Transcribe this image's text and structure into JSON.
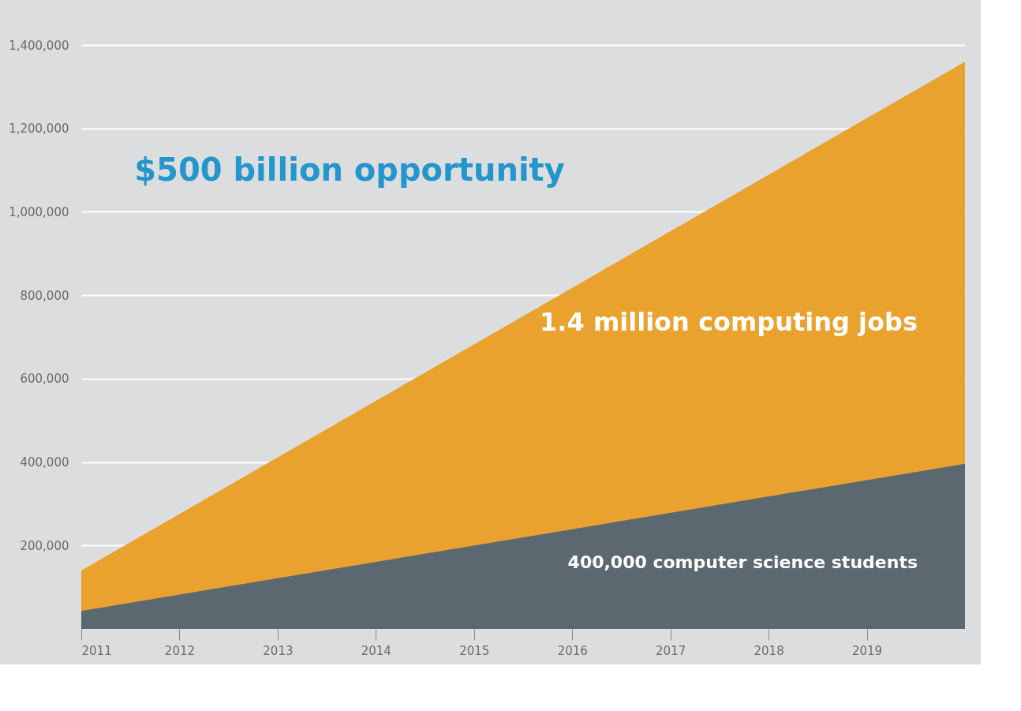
{
  "chart_data": {
    "type": "area",
    "x": [
      2011,
      2020
    ],
    "series": [
      {
        "name": "1.4 million computing jobs",
        "color": "#e9a22d",
        "values": [
          140000,
          1360000
        ]
      },
      {
        "name": "400,000 computer science students",
        "color": "#5b6870",
        "values": [
          43000,
          396000
        ]
      }
    ],
    "xlim": [
      2011,
      2020
    ],
    "xticks": [
      2011,
      2012,
      2013,
      2014,
      2015,
      2016,
      2017,
      2018,
      2019
    ],
    "ylim": [
      0,
      1400000
    ],
    "yticks": [
      {
        "value": 200000,
        "label": "200,000"
      },
      {
        "value": 400000,
        "label": "400,000"
      },
      {
        "value": 600000,
        "label": "600,000"
      },
      {
        "value": 800000,
        "label": "800,000"
      },
      {
        "value": 1000000,
        "label": "1,000,000"
      },
      {
        "value": 1200000,
        "label": "1,200,000"
      },
      {
        "value": 1400000,
        "label": "1,400,000"
      }
    ],
    "grid": "y",
    "annotations": [
      "$500 billion opportunity"
    ]
  }
}
